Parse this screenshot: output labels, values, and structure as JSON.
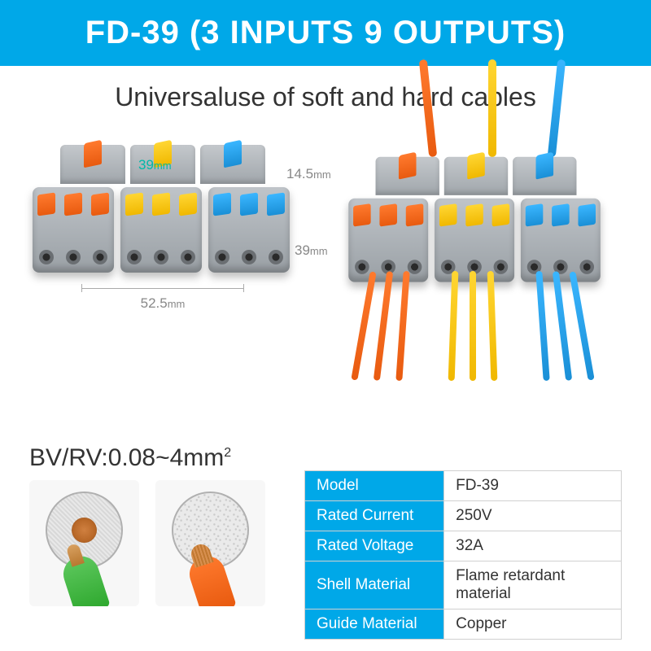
{
  "header": {
    "title": "FD-39 (3 INPUTS 9 OUTPUTS)"
  },
  "subtitle": "Universaluse of soft and hard cables",
  "colors": {
    "accent": "#00a8e8",
    "orange": "#ff7a2e",
    "yellow": "#ffd633",
    "blue": "#3ab6ff",
    "dim_green": "#00b8a8"
  },
  "dimensions": {
    "width_mm": "52.5",
    "top_height_mm": "14.5",
    "depth_mm": "39",
    "center_mm": "39",
    "unit": "mm"
  },
  "cable": {
    "label": "BV/RV:0.08~4mm",
    "sup": "2"
  },
  "specs": [
    {
      "key": "Model",
      "value": "FD-39"
    },
    {
      "key": "Rated Current",
      "value": "250V"
    },
    {
      "key": "Rated Voltage",
      "value": "32A"
    },
    {
      "key": "Shell Material",
      "value": "Flame retardant material"
    },
    {
      "key": "Guide Material",
      "value": "Copper"
    }
  ]
}
